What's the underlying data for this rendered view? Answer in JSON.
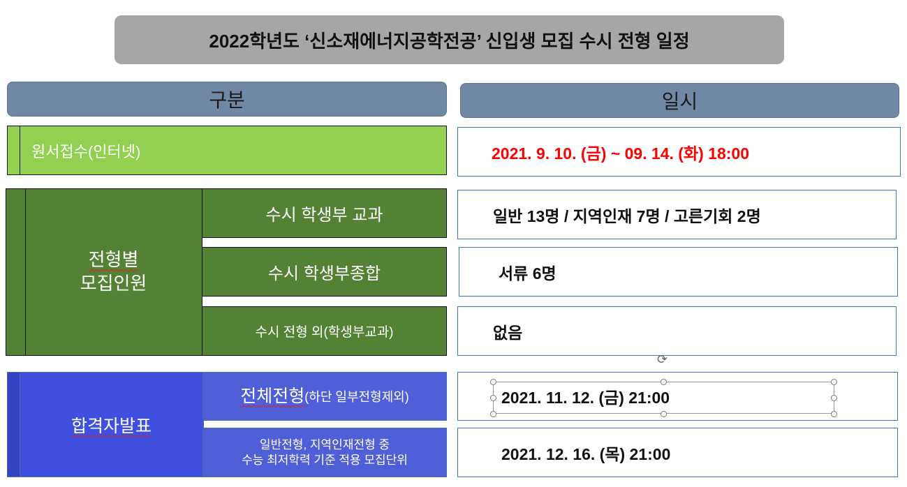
{
  "title": "2022학년도 ‘신소재에너지공학전공’ 신입생 모집 수시 전형 일정",
  "headers": {
    "category": "구분",
    "date": "일시"
  },
  "application": {
    "label": "원서접수(인터넷)",
    "value": "2021. 9. 10. (금) ~ 09. 14. (화) 18:00"
  },
  "quota": {
    "label_line1": "전형별",
    "label_line2": "모집인원",
    "rows": [
      {
        "label": "수시 학생부 교과",
        "value": "일반 13명 / 지역인재 7명 / 고른기회 2명"
      },
      {
        "label": "수시 학생부종합",
        "value": "서류 6명"
      },
      {
        "label": "수시 전형 외(학생부교과)",
        "value": "없음"
      }
    ]
  },
  "announcement": {
    "label": "합격자발표",
    "rows": [
      {
        "label_main": "전체전형",
        "label_sub": "(하단 일부전형제외)",
        "value": "2021. 11. 12. (금) 21:00"
      },
      {
        "label_line1": "일반전형, 지역인재전형 중",
        "label_line2": "수능 최저학력 기준 적용 모집단위",
        "value": "2021. 12. 16. (목) 21:00"
      }
    ]
  },
  "colors": {
    "title_bg": "#a6a6a6",
    "header_bg": "#7088a4",
    "light_green": "#92d050",
    "dark_green": "#548235",
    "blue": "#3f4fe0",
    "highlight_red": "#ff0000",
    "value_border": "#4472c4"
  }
}
